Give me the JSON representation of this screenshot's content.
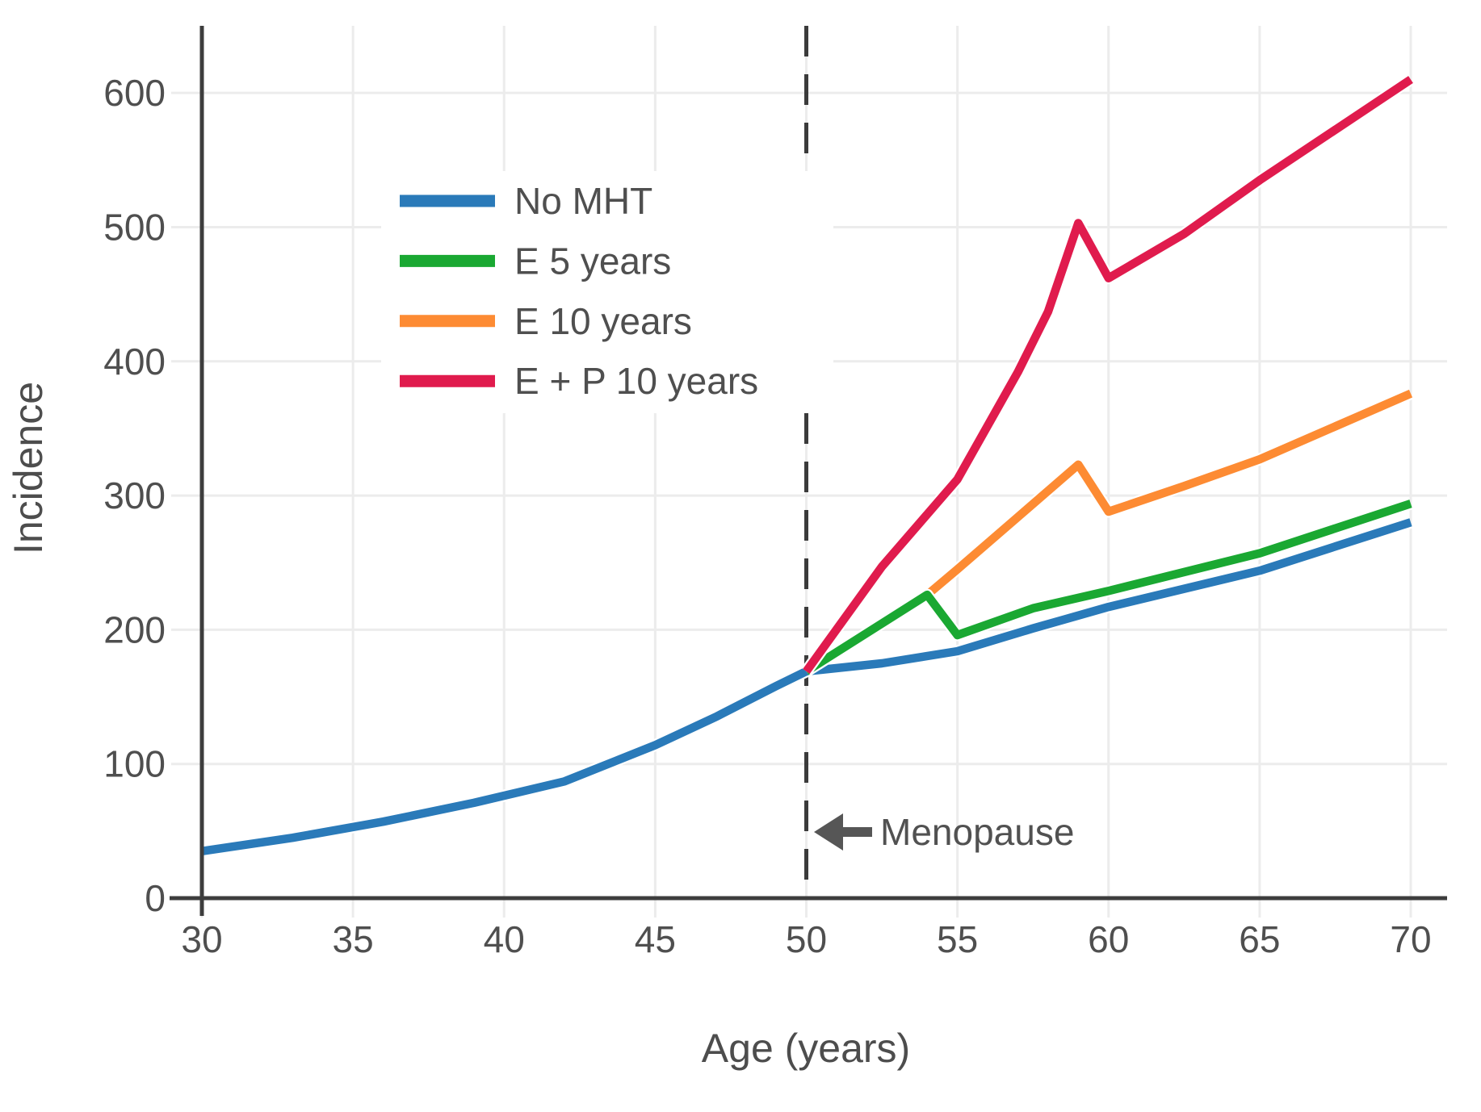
{
  "chart_data": {
    "type": "line",
    "title": "",
    "xlabel": "Age (years)",
    "ylabel": "Incidence",
    "xlim": [
      30,
      70
    ],
    "ylim": [
      0,
      650
    ],
    "xticks": [
      30,
      35,
      40,
      45,
      50,
      55,
      60,
      65,
      70
    ],
    "yticks": [
      0,
      100,
      200,
      300,
      400,
      500,
      600
    ],
    "grid": true,
    "background": "#ffffff",
    "axis_color": "#3d3d3d",
    "grid_color": "#ececec",
    "tick_label_color": "#4f4f4f",
    "legend_position": "upper-left-inside",
    "series": [
      {
        "name": "No MHT",
        "color": "#2a7ab9",
        "z": 0,
        "points": [
          [
            30,
            35
          ],
          [
            33,
            45
          ],
          [
            36,
            57
          ],
          [
            39,
            71
          ],
          [
            42,
            87
          ],
          [
            45,
            114
          ],
          [
            47,
            135
          ],
          [
            49,
            158
          ],
          [
            50,
            169
          ],
          [
            52.5,
            175
          ],
          [
            55,
            184
          ],
          [
            57.5,
            201
          ],
          [
            60,
            217
          ],
          [
            65,
            244
          ],
          [
            70,
            280
          ]
        ]
      },
      {
        "name": "E 5 years",
        "color": "#1aa832",
        "z": 2,
        "points": [
          [
            50,
            169
          ],
          [
            54,
            226
          ],
          [
            55,
            196
          ],
          [
            57.5,
            216
          ],
          [
            60,
            229
          ],
          [
            65,
            257
          ],
          [
            70,
            294
          ]
        ]
      },
      {
        "name": "E 10 years",
        "color": "#fd8b33",
        "z": 1,
        "points": [
          [
            50,
            169
          ],
          [
            54,
            226
          ],
          [
            55,
            245
          ],
          [
            57,
            284
          ],
          [
            59,
            323
          ],
          [
            60,
            288
          ],
          [
            62.5,
            307
          ],
          [
            65,
            327
          ],
          [
            70,
            376
          ]
        ]
      },
      {
        "name": "E + P 10 years",
        "color": "#e01b4d",
        "z": 3,
        "points": [
          [
            50,
            169
          ],
          [
            52.5,
            247
          ],
          [
            55,
            312
          ],
          [
            57,
            392
          ],
          [
            58,
            437
          ],
          [
            59,
            503
          ],
          [
            60,
            462
          ],
          [
            62.5,
            495
          ],
          [
            65,
            535
          ],
          [
            70,
            610
          ]
        ]
      }
    ],
    "vline": {
      "x": 50,
      "style": "dashed",
      "color": "#3b3b3b"
    },
    "annotations": [
      {
        "text": "Menopause",
        "arrow": "left",
        "points_to_x": 50,
        "at_y": 49
      }
    ]
  }
}
